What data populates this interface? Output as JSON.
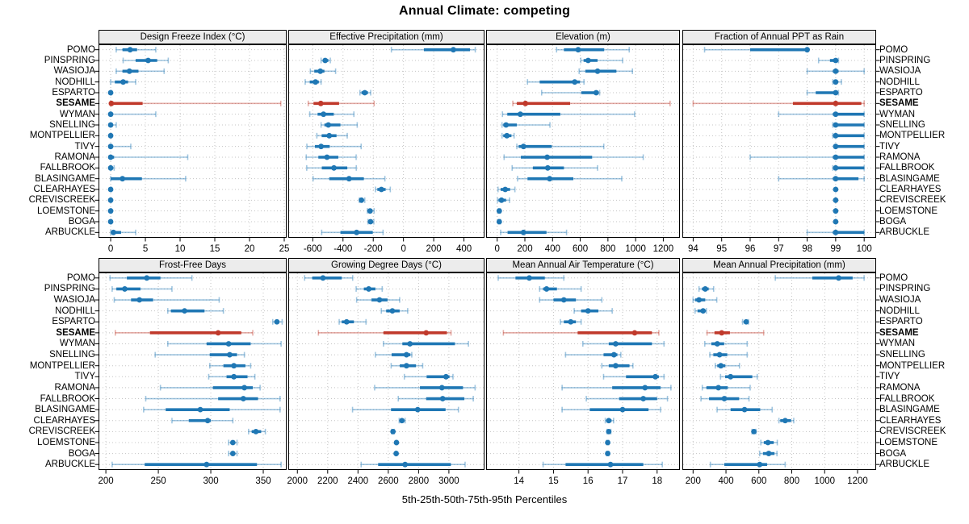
{
  "title": "Annual Climate: competing",
  "caption": "5th-25th-50th-75th-95th Percentiles",
  "highlight_site": "SESAME",
  "percentiles": [
    "5th",
    "25th",
    "50th",
    "75th",
    "95th"
  ],
  "sites": [
    "POMO",
    "PINSPRING",
    "WASIOJA",
    "NODHILL",
    "ESPARTO",
    "SESAME",
    "WYMAN",
    "SNELLING",
    "MONTPELLIER",
    "TIVY",
    "RAMONA",
    "FALLBROOK",
    "BLASINGAME",
    "CLEARHAYES",
    "CREVISCREEK",
    "LOEMSTONE",
    "BOGA",
    "ARBUCKLE"
  ],
  "colors": {
    "series": "#1f77b4",
    "series_light": "rgba(31,119,180,0.42)",
    "highlight": "#c0392b",
    "highlight_light": "rgba(192,57,43,0.42)",
    "strip_bg": "#ececec",
    "grid": "#c4c4c4",
    "border": "#000000"
  },
  "chart_data": [
    {
      "type": "dotplot-interval",
      "title": "Design Freeze Index (°C)",
      "row": 0,
      "col": 0,
      "xlim": [
        -1.75,
        25.35
      ],
      "ticks": [
        0,
        5,
        10,
        15,
        20,
        25
      ],
      "values": [
        [
          0.8,
          1.7,
          2.8,
          3.8,
          6.5
        ],
        [
          1.8,
          3.6,
          5.4,
          6.7,
          8.3
        ],
        [
          0.8,
          1.7,
          2.7,
          4.0,
          7.7
        ],
        [
          0,
          0.6,
          1.8,
          2.5,
          3.6
        ],
        [
          0,
          0,
          0,
          0,
          0.1
        ],
        [
          0,
          0,
          0.1,
          4.6,
          24.5
        ],
        [
          0,
          0,
          0,
          0.2,
          6.5
        ],
        [
          0,
          0,
          0,
          0.2,
          0.8
        ],
        [
          0,
          0,
          0,
          0,
          0.1
        ],
        [
          0,
          0,
          0,
          0.3,
          2.9
        ],
        [
          0,
          0,
          0,
          0.5,
          11.1
        ],
        [
          0,
          0,
          0,
          0,
          0.5
        ],
        [
          0,
          0,
          1.7,
          4.5,
          10.8
        ],
        [
          0,
          0,
          0,
          0,
          0.1
        ],
        [
          0,
          0,
          0,
          0,
          0.1
        ],
        [
          0,
          0,
          0,
          0,
          0.1
        ],
        [
          0,
          0,
          0,
          0,
          0.1
        ],
        [
          0,
          0.2,
          0.4,
          1.5,
          3.6
        ]
      ]
    },
    {
      "type": "dotplot-interval",
      "title": "Effective Precipitation (mm)",
      "row": 0,
      "col": 1,
      "xlim": [
        -762,
        536
      ],
      "ticks": [
        -600,
        -400,
        -200,
        0,
        200,
        400
      ],
      "values": [
        [
          -80,
          135,
          330,
          440,
          475
        ],
        [
          -545,
          -530,
          -518,
          -497,
          -484
        ],
        [
          -616,
          -590,
          -550,
          -523,
          -449
        ],
        [
          -650,
          -620,
          -582,
          -560,
          -545
        ],
        [
          -288,
          -278,
          -256,
          -235,
          -217
        ],
        [
          -630,
          -595,
          -547,
          -426,
          -194
        ],
        [
          -620,
          -568,
          -529,
          -461,
          -328
        ],
        [
          -545,
          -523,
          -497,
          -417,
          -306
        ],
        [
          -573,
          -541,
          -491,
          -443,
          -372
        ],
        [
          -639,
          -586,
          -545,
          -488,
          -280
        ],
        [
          -643,
          -563,
          -506,
          -431,
          -313
        ],
        [
          -640,
          -540,
          -460,
          -372,
          -312
        ],
        [
          -598,
          -491,
          -360,
          -262,
          -123
        ],
        [
          -185,
          -173,
          -146,
          -118,
          -87
        ],
        [
          -292,
          -285,
          -278,
          -265,
          -256
        ],
        [
          -239,
          -230,
          -221,
          -205,
          -194
        ],
        [
          -235,
          -228,
          -218,
          -205,
          -196
        ],
        [
          -541,
          -417,
          -310,
          -203,
          -135
        ]
      ]
    },
    {
      "type": "dotplot-interval",
      "title": "Elevation (m)",
      "row": 0,
      "col": 2,
      "xlim": [
        -80,
        1320
      ],
      "ticks": [
        0,
        200,
        400,
        600,
        800,
        1000,
        1200
      ],
      "values": [
        [
          429,
          482,
          585,
          773,
          954
        ],
        [
          604,
          624,
          657,
          725,
          906
        ],
        [
          592,
          637,
          725,
          861,
          977
        ],
        [
          219,
          307,
          560,
          598,
          627
        ],
        [
          321,
          608,
          715,
          734,
          740
        ],
        [
          113,
          142,
          204,
          527,
          1249
        ],
        [
          38,
          73,
          167,
          456,
          993
        ],
        [
          35,
          44,
          64,
          142,
          381
        ],
        [
          35,
          44,
          70,
          103,
          122
        ],
        [
          142,
          155,
          190,
          394,
          770
        ],
        [
          50,
          171,
          361,
          686,
          1055
        ],
        [
          108,
          258,
          365,
          482,
          725
        ],
        [
          147,
          219,
          379,
          550,
          900
        ],
        [
          6,
          25,
          58,
          93,
          128
        ],
        [
          2,
          9,
          31,
          64,
          89
        ],
        [
          8,
          11,
          15,
          19,
          23
        ],
        [
          8,
          11,
          15,
          19,
          23
        ],
        [
          25,
          75,
          190,
          356,
          501
        ]
      ]
    },
    {
      "type": "dotplot-interval",
      "title": "Fraction of Annual PPT as Rain",
      "row": 0,
      "col": 3,
      "xlim": [
        93.62,
        100.42
      ],
      "ticks": [
        94,
        95,
        96,
        97,
        98,
        99,
        100
      ],
      "values": [
        [
          94.4,
          96.0,
          98.0,
          98.0,
          98.0
        ],
        [
          98.4,
          98.8,
          99.0,
          99.0,
          99.1
        ],
        [
          98.0,
          98.9,
          99.0,
          99.1,
          100
        ],
        [
          98.9,
          99.0,
          99.0,
          99.05,
          99.2
        ],
        [
          98.0,
          98.3,
          99.0,
          99.0,
          99.1
        ],
        [
          94.0,
          97.5,
          99.0,
          99.9,
          100
        ],
        [
          97.0,
          98.9,
          99.0,
          100,
          100
        ],
        [
          98.9,
          99.0,
          99.0,
          100,
          100
        ],
        [
          98.9,
          99.0,
          99.0,
          100,
          100
        ],
        [
          99.0,
          99.0,
          99.0,
          100,
          100
        ],
        [
          96.0,
          98.9,
          99.0,
          100,
          100
        ],
        [
          98.9,
          99.0,
          99.0,
          100,
          100
        ],
        [
          97.0,
          98.9,
          99.0,
          99.8,
          100
        ],
        [
          99,
          99,
          99,
          99,
          99
        ],
        [
          99,
          99,
          99,
          99,
          99
        ],
        [
          99,
          99,
          99,
          99,
          99
        ],
        [
          99,
          99,
          99,
          99,
          99
        ],
        [
          98.0,
          98.9,
          99.0,
          100,
          100
        ]
      ]
    },
    {
      "type": "dotplot-interval",
      "title": "Frost-Free Days",
      "row": 1,
      "col": 0,
      "xlim": [
        193,
        372.3
      ],
      "ticks": [
        200,
        250,
        300,
        350
      ],
      "values": [
        [
          204,
          220,
          239,
          252,
          282
        ],
        [
          206,
          210,
          218,
          233,
          263
        ],
        [
          208,
          224,
          232,
          245,
          308
        ],
        [
          259,
          262,
          275,
          294,
          312
        ],
        [
          359,
          361,
          363,
          365,
          368
        ],
        [
          209,
          242,
          307,
          329,
          340
        ],
        [
          259,
          296,
          317,
          338,
          367
        ],
        [
          247,
          299,
          318,
          325,
          332
        ],
        [
          299,
          312,
          322,
          333,
          338
        ],
        [
          298,
          315,
          322,
          335,
          342
        ],
        [
          252,
          302,
          332,
          340,
          347
        ],
        [
          238,
          307,
          331,
          345,
          366
        ],
        [
          236,
          257,
          290,
          318,
          366
        ],
        [
          263,
          279,
          297,
          300,
          321
        ],
        [
          336,
          339,
          343,
          348,
          352
        ],
        [
          317,
          319,
          321,
          323,
          325
        ],
        [
          317,
          319,
          321,
          323,
          325
        ],
        [
          206,
          237,
          296,
          344,
          367
        ]
      ]
    },
    {
      "type": "dotplot-interval",
      "title": "Growing Degree Days (°C)",
      "row": 1,
      "col": 1,
      "xlim": [
        1940,
        3235
      ],
      "ticks": [
        2000,
        2200,
        2400,
        2600,
        2800,
        3000
      ],
      "values": [
        [
          2048,
          2098,
          2169,
          2293,
          2365
        ],
        [
          2388,
          2439,
          2471,
          2515,
          2560
        ],
        [
          2391,
          2489,
          2542,
          2595,
          2675
        ],
        [
          2554,
          2586,
          2627,
          2675,
          2728
        ],
        [
          2276,
          2293,
          2325,
          2373,
          2453
        ],
        [
          2139,
          2568,
          2850,
          2987,
          3014
        ],
        [
          2568,
          2693,
          2743,
          3040,
          3129
        ],
        [
          2515,
          2622,
          2720,
          2746,
          2755
        ],
        [
          2619,
          2676,
          2720,
          2783,
          2827
        ],
        [
          2706,
          2853,
          2981,
          3004,
          3027
        ],
        [
          2510,
          2809,
          2954,
          3093,
          3173
        ],
        [
          2666,
          2850,
          2959,
          3102,
          3161
        ],
        [
          2364,
          2618,
          2794,
          2978,
          3063
        ],
        [
          2672,
          2683,
          2690,
          2700,
          2711
        ],
        [
          2622,
          2626,
          2631,
          2636,
          2640
        ],
        [
          2650,
          2652,
          2654,
          2656,
          2658
        ],
        [
          2648,
          2650,
          2652,
          2654,
          2656
        ],
        [
          2421,
          2533,
          2711,
          3013,
          3107
        ]
      ]
    },
    {
      "type": "dotplot-interval",
      "title": "Mean Annual Air Temperature (°C)",
      "row": 1,
      "col": 2,
      "xlim": [
        13.05,
        18.66
      ],
      "ticks": [
        14,
        15,
        16,
        17,
        18
      ],
      "values": [
        [
          13.4,
          13.9,
          14.3,
          14.75,
          15.3
        ],
        [
          14.6,
          14.7,
          14.8,
          15.1,
          15.8
        ],
        [
          14.6,
          15.0,
          15.3,
          15.65,
          16.4
        ],
        [
          15.6,
          15.8,
          16.0,
          16.3,
          16.7
        ],
        [
          15.2,
          15.3,
          15.5,
          15.65,
          15.8
        ],
        [
          13.55,
          15.7,
          17.35,
          17.85,
          18.05
        ],
        [
          15.85,
          16.6,
          16.8,
          17.85,
          18.2
        ],
        [
          15.35,
          16.45,
          16.75,
          16.85,
          16.95
        ],
        [
          16.4,
          16.6,
          16.8,
          17.2,
          17.3
        ],
        [
          16.45,
          17.1,
          17.95,
          18.05,
          18.2
        ],
        [
          15.25,
          16.7,
          17.65,
          18.1,
          18.4
        ],
        [
          15.95,
          16.9,
          17.6,
          18.0,
          18.3
        ],
        [
          15.25,
          16.05,
          17.0,
          17.75,
          18.1
        ],
        [
          16.5,
          16.55,
          16.6,
          16.68,
          16.74
        ],
        [
          16.55,
          16.58,
          16.6,
          16.63,
          16.66
        ],
        [
          16.54,
          16.56,
          16.57,
          16.58,
          16.6
        ],
        [
          16.54,
          16.56,
          16.57,
          16.58,
          16.6
        ],
        [
          14.7,
          15.35,
          16.65,
          17.6,
          18.15
        ]
      ]
    },
    {
      "type": "dotplot-interval",
      "title": "Mean Annual Precipitation (mm)",
      "row": 1,
      "col": 3,
      "xlim": [
        134.7,
        1313
      ],
      "ticks": [
        200,
        400,
        600,
        800,
        1000,
        1200
      ],
      "values": [
        [
          700,
          925,
          1085,
          1170,
          1240
        ],
        [
          236,
          254,
          274,
          295,
          325
        ],
        [
          200,
          212,
          236,
          274,
          344
        ],
        [
          212,
          227,
          261,
          275,
          281
        ],
        [
          501,
          510,
          523,
          530,
          537
        ],
        [
          285,
          330,
          374,
          424,
          629
        ],
        [
          271,
          311,
          347,
          389,
          529
        ],
        [
          302,
          323,
          361,
          408,
          529
        ],
        [
          335,
          347,
          369,
          396,
          482
        ],
        [
          367,
          395,
          428,
          560,
          590
        ],
        [
          256,
          281,
          354,
          411,
          547
        ],
        [
          248,
          297,
          390,
          480,
          540
        ],
        [
          346,
          428,
          513,
          608,
          681
        ],
        [
          722,
          730,
          760,
          796,
          812
        ],
        [
          558,
          563,
          570,
          576,
          582
        ],
        [
          612,
          630,
          655,
          690,
          712
        ],
        [
          605,
          625,
          660,
          695,
          710
        ],
        [
          305,
          390,
          605,
          650,
          760
        ]
      ]
    }
  ]
}
